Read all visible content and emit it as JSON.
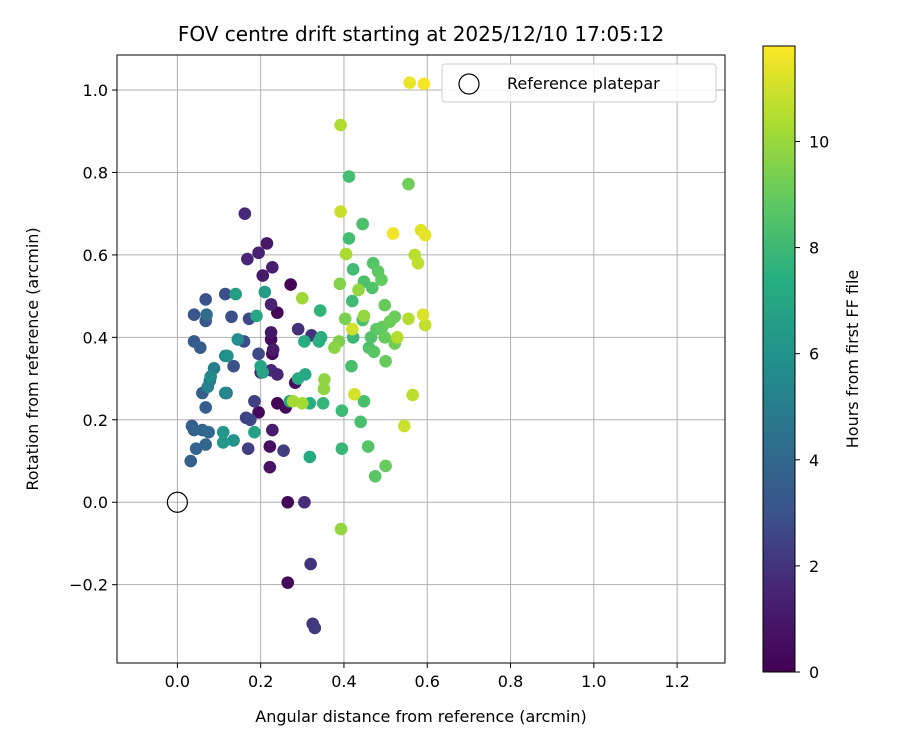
{
  "chart_data": {
    "type": "scatter",
    "title": "FOV centre drift starting at 2025/12/10 17:05:12",
    "xlabel": "Angular distance from reference (arcmin)",
    "ylabel": "Rotation from reference (arcmin)",
    "xlim": [
      -0.145,
      1.315
    ],
    "ylim": [
      -0.39,
      1.085
    ],
    "xticks": [
      0.0,
      0.2,
      0.4,
      0.6,
      0.8,
      1.0,
      1.2
    ],
    "xtick_labels": [
      "0.0",
      "0.2",
      "0.4",
      "0.6",
      "0.8",
      "1.0",
      "1.2"
    ],
    "yticks": [
      -0.2,
      0.0,
      0.2,
      0.4,
      0.6,
      0.8,
      1.0
    ],
    "ytick_labels": [
      "−0.2",
      "0.0",
      "0.2",
      "0.4",
      "0.6",
      "0.8",
      "1.0"
    ],
    "grid": true,
    "legend": {
      "position": "top-right",
      "label": "Reference platepar"
    },
    "reference_point": {
      "x": 0.0,
      "y": 0.0
    },
    "colorbar": {
      "label": "Hours from first FF file",
      "range": [
        0,
        11.8
      ],
      "ticks": [
        0,
        2,
        4,
        6,
        8,
        10
      ],
      "tick_labels": [
        "0",
        "2",
        "4",
        "6",
        "8",
        "10"
      ],
      "colormap": "viridis"
    },
    "points": [
      {
        "x": 0.265,
        "y": 0.0,
        "h": 0.2
      },
      {
        "x": 0.265,
        "y": -0.195,
        "h": 0.3
      },
      {
        "x": 0.272,
        "y": 0.528,
        "h": 0.2
      },
      {
        "x": 0.24,
        "y": 0.46,
        "h": 0.2
      },
      {
        "x": 0.24,
        "y": 0.24,
        "h": 0.1
      },
      {
        "x": 0.26,
        "y": 0.23,
        "h": 0.3
      },
      {
        "x": 0.195,
        "y": 0.218,
        "h": 0.4
      },
      {
        "x": 0.225,
        "y": 0.395,
        "h": 0.4
      },
      {
        "x": 0.228,
        "y": 0.36,
        "h": 0.4
      },
      {
        "x": 0.222,
        "y": 0.135,
        "h": 0.6
      },
      {
        "x": 0.222,
        "y": 0.085,
        "h": 0.8
      },
      {
        "x": 0.283,
        "y": 0.29,
        "h": 0.5
      },
      {
        "x": 0.225,
        "y": 0.412,
        "h": 0.9
      },
      {
        "x": 0.23,
        "y": 0.37,
        "h": 1.1
      },
      {
        "x": 0.228,
        "y": 0.175,
        "h": 1.2
      },
      {
        "x": 0.215,
        "y": 0.628,
        "h": 1.0
      },
      {
        "x": 0.205,
        "y": 0.55,
        "h": 1.1
      },
      {
        "x": 0.228,
        "y": 0.57,
        "h": 1.3
      },
      {
        "x": 0.195,
        "y": 0.605,
        "h": 1.4
      },
      {
        "x": 0.168,
        "y": 0.59,
        "h": 1.6
      },
      {
        "x": 0.162,
        "y": 0.7,
        "h": 1.7
      },
      {
        "x": 0.305,
        "y": 0.0,
        "h": 1.8
      },
      {
        "x": 0.32,
        "y": -0.15,
        "h": 2.0
      },
      {
        "x": 0.325,
        "y": -0.295,
        "h": 2.1
      },
      {
        "x": 0.33,
        "y": -0.305,
        "h": 2.2
      },
      {
        "x": 0.225,
        "y": 0.48,
        "h": 1.5
      },
      {
        "x": 0.2,
        "y": 0.315,
        "h": 1.5
      },
      {
        "x": 0.225,
        "y": 0.32,
        "h": 1.7
      },
      {
        "x": 0.24,
        "y": 0.31,
        "h": 1.6
      },
      {
        "x": 0.29,
        "y": 0.42,
        "h": 1.9
      },
      {
        "x": 0.322,
        "y": 0.405,
        "h": 2.0
      },
      {
        "x": 0.255,
        "y": 0.125,
        "h": 2.3
      },
      {
        "x": 0.185,
        "y": 0.245,
        "h": 2.4
      },
      {
        "x": 0.165,
        "y": 0.205,
        "h": 2.5
      },
      {
        "x": 0.175,
        "y": 0.2,
        "h": 2.6
      },
      {
        "x": 0.17,
        "y": 0.13,
        "h": 2.4
      },
      {
        "x": 0.172,
        "y": 0.445,
        "h": 2.7
      },
      {
        "x": 0.16,
        "y": 0.39,
        "h": 2.8
      },
      {
        "x": 0.195,
        "y": 0.36,
        "h": 2.7
      },
      {
        "x": 0.13,
        "y": 0.45,
        "h": 2.9
      },
      {
        "x": 0.135,
        "y": 0.33,
        "h": 3.0
      },
      {
        "x": 0.115,
        "y": 0.505,
        "h": 2.9
      },
      {
        "x": 0.068,
        "y": 0.492,
        "h": 3.0
      },
      {
        "x": 0.04,
        "y": 0.455,
        "h": 3.1
      },
      {
        "x": 0.068,
        "y": 0.44,
        "h": 3.2
      },
      {
        "x": 0.04,
        "y": 0.39,
        "h": 3.3
      },
      {
        "x": 0.055,
        "y": 0.375,
        "h": 3.5
      },
      {
        "x": 0.07,
        "y": 0.455,
        "h": 4.2
      },
      {
        "x": 0.118,
        "y": 0.265,
        "h": 3.4
      },
      {
        "x": 0.068,
        "y": 0.23,
        "h": 3.5
      },
      {
        "x": 0.06,
        "y": 0.265,
        "h": 3.6
      },
      {
        "x": 0.035,
        "y": 0.185,
        "h": 3.5
      },
      {
        "x": 0.04,
        "y": 0.175,
        "h": 3.7
      },
      {
        "x": 0.06,
        "y": 0.175,
        "h": 3.8
      },
      {
        "x": 0.075,
        "y": 0.17,
        "h": 4.0
      },
      {
        "x": 0.068,
        "y": 0.14,
        "h": 3.9
      },
      {
        "x": 0.045,
        "y": 0.13,
        "h": 3.8
      },
      {
        "x": 0.032,
        "y": 0.1,
        "h": 3.6
      },
      {
        "x": 0.078,
        "y": 0.295,
        "h": 4.6
      },
      {
        "x": 0.088,
        "y": 0.325,
        "h": 5.0
      },
      {
        "x": 0.073,
        "y": 0.28,
        "h": 5.2
      },
      {
        "x": 0.115,
        "y": 0.265,
        "h": 5.5
      },
      {
        "x": 0.115,
        "y": 0.355,
        "h": 5.5
      },
      {
        "x": 0.08,
        "y": 0.305,
        "h": 5.6
      },
      {
        "x": 0.12,
        "y": 0.355,
        "h": 5.8
      },
      {
        "x": 0.145,
        "y": 0.395,
        "h": 5.8
      },
      {
        "x": 0.135,
        "y": 0.15,
        "h": 6.0
      },
      {
        "x": 0.11,
        "y": 0.17,
        "h": 6.2
      },
      {
        "x": 0.11,
        "y": 0.145,
        "h": 6.3
      },
      {
        "x": 0.14,
        "y": 0.505,
        "h": 6.6
      },
      {
        "x": 0.21,
        "y": 0.51,
        "h": 6.5
      },
      {
        "x": 0.185,
        "y": 0.17,
        "h": 6.8
      },
      {
        "x": 0.2,
        "y": 0.33,
        "h": 6.9
      },
      {
        "x": 0.205,
        "y": 0.315,
        "h": 6.9
      },
      {
        "x": 0.19,
        "y": 0.452,
        "h": 7.0
      },
      {
        "x": 0.27,
        "y": 0.245,
        "h": 7.0
      },
      {
        "x": 0.29,
        "y": 0.3,
        "h": 7.2
      },
      {
        "x": 0.307,
        "y": 0.31,
        "h": 7.2
      },
      {
        "x": 0.318,
        "y": 0.11,
        "h": 7.2
      },
      {
        "x": 0.305,
        "y": 0.39,
        "h": 7.3
      },
      {
        "x": 0.318,
        "y": 0.24,
        "h": 7.4
      },
      {
        "x": 0.34,
        "y": 0.39,
        "h": 7.5
      },
      {
        "x": 0.345,
        "y": 0.4,
        "h": 7.5
      },
      {
        "x": 0.343,
        "y": 0.465,
        "h": 7.7
      },
      {
        "x": 0.35,
        "y": 0.24,
        "h": 7.8
      },
      {
        "x": 0.395,
        "y": 0.13,
        "h": 7.9
      },
      {
        "x": 0.395,
        "y": 0.222,
        "h": 8.0
      },
      {
        "x": 0.422,
        "y": 0.4,
        "h": 8.0
      },
      {
        "x": 0.42,
        "y": 0.488,
        "h": 8.1
      },
      {
        "x": 0.422,
        "y": 0.565,
        "h": 8.1
      },
      {
        "x": 0.412,
        "y": 0.64,
        "h": 8.2
      },
      {
        "x": 0.412,
        "y": 0.79,
        "h": 8.2
      },
      {
        "x": 0.418,
        "y": 0.33,
        "h": 8.3
      },
      {
        "x": 0.44,
        "y": 0.195,
        "h": 8.3
      },
      {
        "x": 0.448,
        "y": 0.245,
        "h": 8.3
      },
      {
        "x": 0.445,
        "y": 0.442,
        "h": 8.4
      },
      {
        "x": 0.448,
        "y": 0.535,
        "h": 8.4
      },
      {
        "x": 0.445,
        "y": 0.675,
        "h": 8.4
      },
      {
        "x": 0.46,
        "y": 0.375,
        "h": 8.5
      },
      {
        "x": 0.465,
        "y": 0.4,
        "h": 8.5
      },
      {
        "x": 0.468,
        "y": 0.52,
        "h": 8.5
      },
      {
        "x": 0.47,
        "y": 0.58,
        "h": 8.6
      },
      {
        "x": 0.458,
        "y": 0.135,
        "h": 8.6
      },
      {
        "x": 0.475,
        "y": 0.063,
        "h": 8.7
      },
      {
        "x": 0.472,
        "y": 0.365,
        "h": 8.7
      },
      {
        "x": 0.478,
        "y": 0.42,
        "h": 8.8
      },
      {
        "x": 0.482,
        "y": 0.56,
        "h": 8.8
      },
      {
        "x": 0.49,
        "y": 0.54,
        "h": 8.9
      },
      {
        "x": 0.492,
        "y": 0.425,
        "h": 8.9
      },
      {
        "x": 0.498,
        "y": 0.4,
        "h": 9.0
      },
      {
        "x": 0.498,
        "y": 0.478,
        "h": 9.0
      },
      {
        "x": 0.5,
        "y": 0.088,
        "h": 9.0
      },
      {
        "x": 0.5,
        "y": 0.342,
        "h": 9.0
      },
      {
        "x": 0.51,
        "y": 0.438,
        "h": 9.1
      },
      {
        "x": 0.522,
        "y": 0.45,
        "h": 9.1
      },
      {
        "x": 0.522,
        "y": 0.385,
        "h": 9.2
      },
      {
        "x": 0.555,
        "y": 0.772,
        "h": 9.2
      },
      {
        "x": 0.403,
        "y": 0.445,
        "h": 9.4
      },
      {
        "x": 0.388,
        "y": 0.39,
        "h": 9.5
      },
      {
        "x": 0.39,
        "y": 0.53,
        "h": 9.6
      },
      {
        "x": 0.377,
        "y": 0.375,
        "h": 9.7
      },
      {
        "x": 0.353,
        "y": 0.298,
        "h": 9.8
      },
      {
        "x": 0.352,
        "y": 0.275,
        "h": 9.8
      },
      {
        "x": 0.435,
        "y": 0.515,
        "h": 9.9
      },
      {
        "x": 0.448,
        "y": 0.452,
        "h": 9.9
      },
      {
        "x": 0.393,
        "y": -0.065,
        "h": 9.9
      },
      {
        "x": 0.3,
        "y": 0.495,
        "h": 10.1
      },
      {
        "x": 0.278,
        "y": 0.245,
        "h": 10.2
      },
      {
        "x": 0.3,
        "y": 0.24,
        "h": 10.2
      },
      {
        "x": 0.405,
        "y": 0.602,
        "h": 10.3
      },
      {
        "x": 0.392,
        "y": 0.915,
        "h": 10.4
      },
      {
        "x": 0.528,
        "y": 0.4,
        "h": 10.5
      },
      {
        "x": 0.555,
        "y": 0.445,
        "h": 10.5
      },
      {
        "x": 0.565,
        "y": 0.26,
        "h": 10.6
      },
      {
        "x": 0.57,
        "y": 0.6,
        "h": 10.6
      },
      {
        "x": 0.578,
        "y": 0.58,
        "h": 10.7
      },
      {
        "x": 0.595,
        "y": 0.43,
        "h": 10.8
      },
      {
        "x": 0.545,
        "y": 0.185,
        "h": 10.9
      },
      {
        "x": 0.392,
        "y": 0.705,
        "h": 10.9
      },
      {
        "x": 0.42,
        "y": 0.42,
        "h": 11.0
      },
      {
        "x": 0.425,
        "y": 0.262,
        "h": 11.1
      },
      {
        "x": 0.59,
        "y": 0.455,
        "h": 11.2
      },
      {
        "x": 0.585,
        "y": 0.66,
        "h": 11.3
      },
      {
        "x": 0.595,
        "y": 0.648,
        "h": 11.4
      },
      {
        "x": 0.518,
        "y": 0.652,
        "h": 11.6
      },
      {
        "x": 0.558,
        "y": 1.018,
        "h": 11.5
      },
      {
        "x": 0.592,
        "y": 1.015,
        "h": 11.7
      }
    ]
  }
}
